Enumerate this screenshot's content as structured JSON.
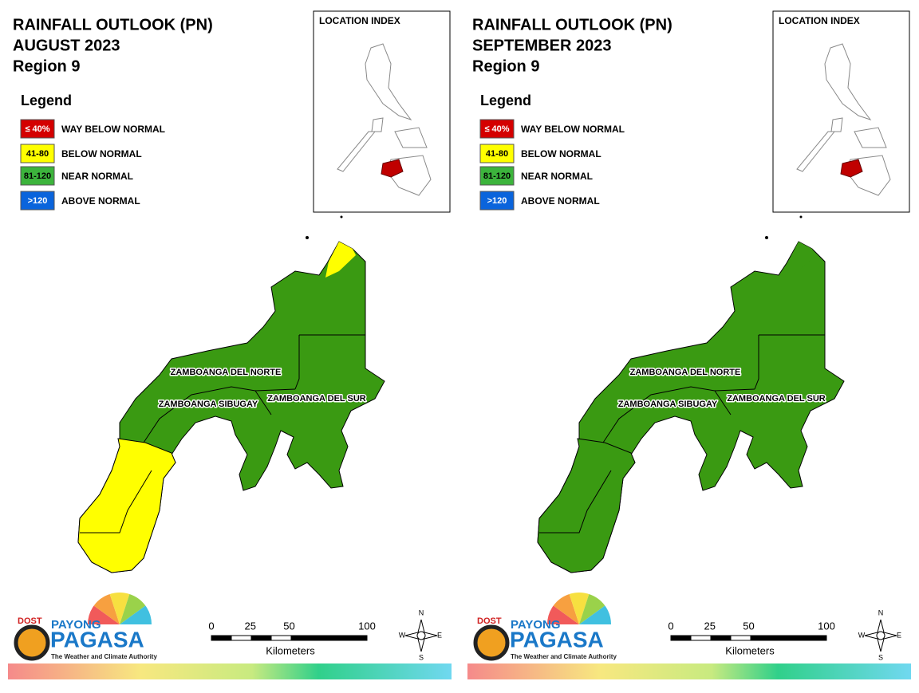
{
  "panels": [
    {
      "title": [
        "RAINFALL OUTLOOK (PN)",
        "AUGUST 2023",
        "Region 9"
      ],
      "legend": {
        "title": "Legend",
        "items": [
          {
            "swatch": "≤ 40%",
            "label": "WAY BELOW NORMAL",
            "color": "#d40000"
          },
          {
            "swatch": "41-80",
            "label": "BELOW NORMAL",
            "color": "#ffff00"
          },
          {
            "swatch": "81-120",
            "label": "NEAR NORMAL",
            "color": "#3cb43c"
          },
          {
            "swatch": ">120",
            "label": "ABOVE NORMAL",
            "color": "#0a64dc"
          }
        ]
      },
      "location_index": "LOCATION INDEX",
      "zone_colors": {
        "main": "#3a9a12",
        "southwest": "#ffff00",
        "north_tip": "#ffff00"
      },
      "provinces": [
        "ZAMBOANGA DEL NORTE",
        "ZAMBOANGA SIBUGAY",
        "ZAMBOANGA DEL SUR"
      ],
      "scale": {
        "ticks": [
          0,
          25,
          50,
          100
        ],
        "unit": "Kilometers"
      },
      "compass": [
        "N",
        "E",
        "S",
        "W"
      ],
      "logo": {
        "agency": "DOST",
        "brand_top": "PAYONG",
        "brand": "PAGASA",
        "tagline": "The Weather and Climate Authority"
      }
    },
    {
      "title": [
        "RAINFALL OUTLOOK (PN)",
        "SEPTEMBER 2023",
        "Region 9"
      ],
      "legend": {
        "title": "Legend",
        "items": [
          {
            "swatch": "≤ 40%",
            "label": "WAY BELOW NORMAL",
            "color": "#d40000"
          },
          {
            "swatch": "41-80",
            "label": "BELOW NORMAL",
            "color": "#ffff00"
          },
          {
            "swatch": "81-120",
            "label": "NEAR NORMAL",
            "color": "#3cb43c"
          },
          {
            "swatch": ">120",
            "label": "ABOVE NORMAL",
            "color": "#0a64dc"
          }
        ]
      },
      "location_index": "LOCATION INDEX",
      "zone_colors": {
        "main": "#3a9a12",
        "southwest": "#3a9a12",
        "north_tip": "#3a9a12"
      },
      "provinces": [
        "ZAMBOANGA DEL NORTE",
        "ZAMBOANGA SIBUGAY",
        "ZAMBOANGA DEL SUR"
      ],
      "scale": {
        "ticks": [
          0,
          25,
          50,
          100
        ],
        "unit": "Kilometers"
      },
      "compass": [
        "N",
        "E",
        "S",
        "W"
      ],
      "logo": {
        "agency": "DOST",
        "brand_top": "PAYONG",
        "brand": "PAGASA",
        "tagline": "The Weather and Climate Authority"
      }
    }
  ]
}
